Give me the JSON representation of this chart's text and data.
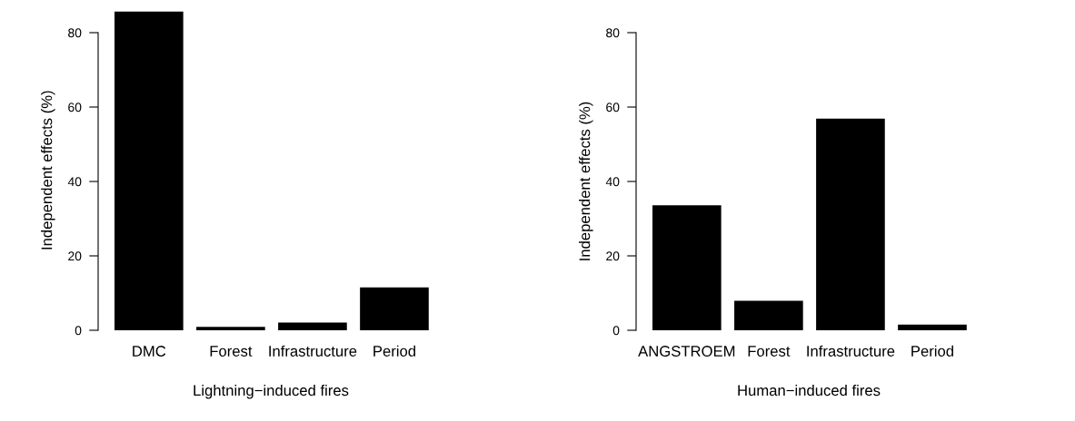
{
  "chart_data": [
    {
      "type": "bar",
      "xlabel": "Lightning−induced fires",
      "ylabel": "Independent effects (%)",
      "categories": [
        "DMC",
        "Forest",
        "Infrastructure",
        "Period"
      ],
      "values": [
        85.7,
        0.9,
        2.1,
        11.5
      ],
      "color": "#000000",
      "ylim": [
        0,
        86
      ],
      "yticks": [
        0,
        20,
        40,
        60,
        80
      ],
      "grid": false
    },
    {
      "type": "bar",
      "xlabel": "Human−induced fires",
      "ylabel": "Independent effects (%)",
      "categories": [
        "ANGSTROEM",
        "Forest",
        "Infrastructure",
        "Period"
      ],
      "values": [
        33.6,
        7.9,
        56.9,
        1.5
      ],
      "color": "#000000",
      "ylim": [
        0,
        80
      ],
      "yticks": [
        0,
        20,
        40,
        60,
        80
      ],
      "grid": false
    }
  ]
}
